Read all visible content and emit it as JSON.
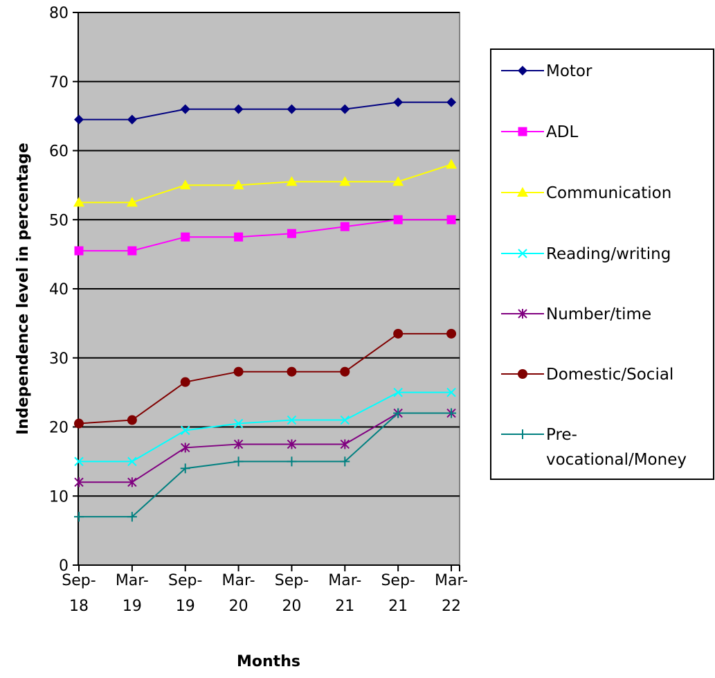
{
  "chart_data": {
    "type": "line",
    "xlabel": "Months",
    "ylabel": "Independence level in percentage",
    "ylim": [
      0,
      80
    ],
    "yticks": [
      0,
      10,
      20,
      30,
      40,
      50,
      60,
      70,
      80
    ],
    "grid": "horizontal",
    "plot_background": "#c0c0c0",
    "legend_position": "right",
    "categories": [
      [
        "Sep-",
        "18"
      ],
      [
        "Mar-",
        "19"
      ],
      [
        "Sep-",
        "19"
      ],
      [
        "Mar-",
        "20"
      ],
      [
        "Sep-",
        "20"
      ],
      [
        "Mar-",
        "21"
      ],
      [
        "Sep-",
        "21"
      ],
      [
        "Mar-",
        "22"
      ]
    ],
    "series": [
      {
        "name": "Motor",
        "legend_lines": [
          "Motor"
        ],
        "color": "#000080",
        "marker": "diamond",
        "values": [
          64.5,
          64.5,
          66,
          66,
          66,
          66,
          67,
          67
        ]
      },
      {
        "name": "ADL",
        "legend_lines": [
          "ADL"
        ],
        "color": "#ff00ff",
        "marker": "square",
        "values": [
          45.5,
          45.5,
          47.5,
          47.5,
          48,
          49,
          50,
          50
        ]
      },
      {
        "name": "Communication",
        "legend_lines": [
          "Communication"
        ],
        "color": "#ffff00",
        "marker": "triangle",
        "values": [
          52.5,
          52.5,
          55,
          55,
          55.5,
          55.5,
          55.5,
          58
        ]
      },
      {
        "name": "Reading/writing",
        "legend_lines": [
          "Reading/writing"
        ],
        "color": "#00ffff",
        "marker": "x",
        "values": [
          15,
          15,
          19.5,
          20.5,
          21,
          21,
          25,
          25
        ]
      },
      {
        "name": "Number/time",
        "legend_lines": [
          "Number/time"
        ],
        "color": "#800080",
        "marker": "star",
        "values": [
          12,
          12,
          17,
          17.5,
          17.5,
          17.5,
          22,
          22
        ]
      },
      {
        "name": "Domestic/Social",
        "legend_lines": [
          "Domestic/Social"
        ],
        "color": "#800000",
        "marker": "circle",
        "values": [
          20.5,
          21,
          26.5,
          28,
          28,
          28,
          33.5,
          33.5
        ]
      },
      {
        "name": "Pre-vocational/Money",
        "legend_lines": [
          "Pre-",
          "vocational/Money"
        ],
        "color": "#008080",
        "marker": "plus",
        "values": [
          7,
          7,
          14,
          15,
          15,
          15,
          22,
          22
        ]
      }
    ]
  }
}
